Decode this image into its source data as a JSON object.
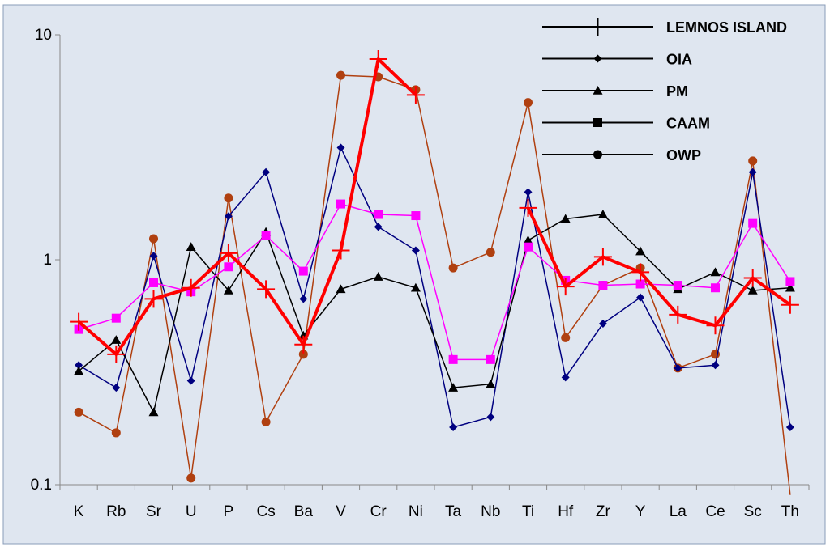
{
  "chart_data": {
    "type": "line",
    "title": "",
    "xlabel": "",
    "ylabel": "",
    "y_scale": "log",
    "ylim": [
      0.1,
      10
    ],
    "y_ticks": [
      {
        "value": 0.1,
        "label": "0.1"
      },
      {
        "value": 1,
        "label": "1"
      },
      {
        "value": 10,
        "label": "10"
      }
    ],
    "grid": false,
    "legend_position": "top-right",
    "categories": [
      "K",
      "Rb",
      "Sr",
      "U",
      "P",
      "Cs",
      "Ba",
      "V",
      "Cr",
      "Ni",
      "Ta",
      "Nb",
      "Ti",
      "Hf",
      "Zr",
      "Y",
      "La",
      "Ce",
      "Sc",
      "Th"
    ],
    "series": [
      {
        "name": "LEMNOS ISLAND",
        "marker": "plus",
        "color": "#ff0000",
        "values": [
          0.53,
          0.38,
          0.67,
          0.75,
          1.07,
          0.74,
          0.42,
          1.1,
          7.8,
          5.4,
          null,
          null,
          1.7,
          0.76,
          1.03,
          0.88,
          0.57,
          0.51,
          0.83,
          0.63
        ]
      },
      {
        "name": "OIA",
        "marker": "diamond",
        "color": "#000080",
        "values": [
          0.34,
          0.27,
          1.04,
          0.29,
          1.56,
          2.45,
          0.67,
          3.15,
          1.4,
          1.1,
          0.18,
          0.2,
          2.0,
          0.3,
          0.52,
          0.68,
          0.33,
          0.34,
          2.45,
          0.18
        ]
      },
      {
        "name": "PM",
        "marker": "triangle",
        "color": "#000000",
        "values": [
          0.32,
          0.44,
          0.21,
          1.14,
          0.73,
          1.33,
          0.46,
          0.74,
          0.84,
          0.75,
          0.27,
          0.28,
          1.22,
          1.52,
          1.59,
          1.09,
          0.74,
          0.88,
          0.73,
          0.75
        ]
      },
      {
        "name": "CAAM",
        "marker": "square",
        "color": "#ff00ff",
        "values": [
          0.49,
          0.55,
          0.79,
          0.72,
          0.93,
          1.28,
          0.89,
          1.77,
          1.59,
          1.57,
          0.36,
          0.36,
          1.14,
          0.81,
          0.77,
          0.78,
          0.77,
          0.75,
          1.45,
          0.8
        ]
      },
      {
        "name": "OWP",
        "marker": "circle",
        "color": "#b04010",
        "values": [
          0.21,
          0.17,
          1.24,
          0.107,
          1.88,
          0.19,
          0.38,
          6.6,
          6.5,
          5.7,
          0.92,
          1.08,
          5.0,
          0.45,
          0.77,
          0.92,
          0.33,
          0.38,
          2.75,
          0.09
        ]
      }
    ],
    "legend": [
      {
        "name": "LEMNOS ISLAND",
        "marker": "plus"
      },
      {
        "name": "OIA",
        "marker": "diamond"
      },
      {
        "name": "PM",
        "marker": "triangle"
      },
      {
        "name": "CAAM",
        "marker": "square"
      },
      {
        "name": "OWP",
        "marker": "circle"
      }
    ],
    "colors": {
      "plot_background": "#dfe6f0",
      "axis": "#888888",
      "border": "#8a9cb8"
    }
  }
}
